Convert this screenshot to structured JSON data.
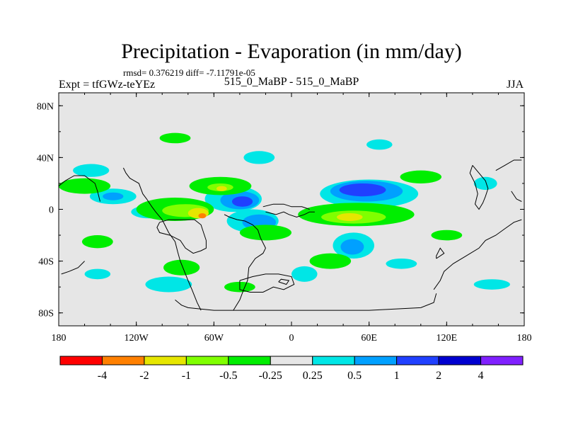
{
  "chart_data": {
    "type": "heatmap",
    "title": "Precipitation - Evaporation (in mm/day)",
    "stats_line": "rmsd= 0.376219 diff= -7.11791e-05",
    "experiment_label": "Expt = tfGWz-teYEz",
    "comparison_label": "515_0_MaBP - 515_0_MaBP",
    "season": "JJA",
    "x_ticks": [
      {
        "value": -180,
        "label": "180"
      },
      {
        "value": -120,
        "label": "120W"
      },
      {
        "value": -60,
        "label": "60W"
      },
      {
        "value": 0,
        "label": "0"
      },
      {
        "value": 60,
        "label": "60E"
      },
      {
        "value": 120,
        "label": "120E"
      },
      {
        "value": 180,
        "label": "180"
      }
    ],
    "y_ticks": [
      {
        "value": 80,
        "label": "80N"
      },
      {
        "value": 40,
        "label": "40N"
      },
      {
        "value": 0,
        "label": "0"
      },
      {
        "value": -40,
        "label": "40S"
      },
      {
        "value": -80,
        "label": "80S"
      }
    ],
    "xlim": [
      -180,
      180
    ],
    "ylim": [
      -90,
      90
    ],
    "colorbar": {
      "colors": [
        "#ff0000",
        "#ff8000",
        "#e6e600",
        "#80ff00",
        "#00ee00",
        "#e6e6e6",
        "#00e6e6",
        "#00a0ff",
        "#2040ff",
        "#0000d0",
        "#8020ff"
      ],
      "labels": [
        "-4",
        "-2",
        "-1",
        "-0.5",
        "-0.25",
        "0.25",
        "0.5",
        "1",
        "2",
        "4"
      ]
    },
    "regions": [
      {
        "level": 6,
        "lon": 60,
        "lat": 12,
        "rx": 38,
        "ry": 11
      },
      {
        "level": 7,
        "lon": 58,
        "lat": 14,
        "rx": 28,
        "ry": 8
      },
      {
        "level": 8,
        "lon": 55,
        "lat": 15,
        "rx": 18,
        "ry": 5
      },
      {
        "level": 6,
        "lon": -45,
        "lat": 8,
        "rx": 22,
        "ry": 10
      },
      {
        "level": 7,
        "lon": -40,
        "lat": 7,
        "rx": 15,
        "ry": 7
      },
      {
        "level": 8,
        "lon": -38,
        "lat": 6,
        "rx": 8,
        "ry": 4
      },
      {
        "level": 6,
        "lon": -30,
        "lat": -9,
        "rx": 20,
        "ry": 9
      },
      {
        "level": 7,
        "lon": -25,
        "lat": -10,
        "rx": 13,
        "ry": 6
      },
      {
        "level": 6,
        "lon": 48,
        "lat": -28,
        "rx": 16,
        "ry": 10
      },
      {
        "level": 7,
        "lon": 47,
        "lat": -29,
        "rx": 9,
        "ry": 6
      },
      {
        "level": 6,
        "lon": -138,
        "lat": 10,
        "rx": 18,
        "ry": 6
      },
      {
        "level": 7,
        "lon": -138,
        "lat": 10,
        "rx": 8,
        "ry": 3
      },
      {
        "level": 6,
        "lon": -110,
        "lat": -2,
        "rx": 14,
        "ry": 5
      },
      {
        "level": 6,
        "lon": -155,
        "lat": 30,
        "rx": 14,
        "ry": 5
      },
      {
        "level": 6,
        "lon": 150,
        "lat": 20,
        "rx": 9,
        "ry": 5
      },
      {
        "level": 6,
        "lon": -95,
        "lat": -58,
        "rx": 18,
        "ry": 6
      },
      {
        "level": 6,
        "lon": 10,
        "lat": -50,
        "rx": 10,
        "ry": 6
      },
      {
        "level": 6,
        "lon": 85,
        "lat": -42,
        "rx": 12,
        "ry": 4
      },
      {
        "level": 6,
        "lon": 155,
        "lat": -58,
        "rx": 14,
        "ry": 4
      },
      {
        "level": 6,
        "lon": -25,
        "lat": 40,
        "rx": 12,
        "ry": 5
      },
      {
        "level": 6,
        "lon": 68,
        "lat": 50,
        "rx": 10,
        "ry": 4
      },
      {
        "level": 6,
        "lon": -150,
        "lat": -50,
        "rx": 10,
        "ry": 4
      },
      {
        "level": 4,
        "lon": 50,
        "lat": -4,
        "rx": 45,
        "ry": 9
      },
      {
        "level": 3,
        "lon": 48,
        "lat": -6,
        "rx": 25,
        "ry": 5
      },
      {
        "level": 2,
        "lon": 45,
        "lat": -6,
        "rx": 10,
        "ry": 3
      },
      {
        "level": 4,
        "lon": -90,
        "lat": 0,
        "rx": 30,
        "ry": 9
      },
      {
        "level": 3,
        "lon": -82,
        "lat": -1,
        "rx": 18,
        "ry": 5
      },
      {
        "level": 2,
        "lon": -72,
        "lat": -3,
        "rx": 8,
        "ry": 4
      },
      {
        "level": 1,
        "lon": -69,
        "lat": -5,
        "rx": 3,
        "ry": 2
      },
      {
        "level": 4,
        "lon": -55,
        "lat": 18,
        "rx": 24,
        "ry": 7
      },
      {
        "level": 3,
        "lon": -55,
        "lat": 17,
        "rx": 10,
        "ry": 3
      },
      {
        "level": 2,
        "lon": -54,
        "lat": 16,
        "rx": 4,
        "ry": 2
      },
      {
        "level": 4,
        "lon": -160,
        "lat": 18,
        "rx": 20,
        "ry": 6
      },
      {
        "level": 4,
        "lon": 100,
        "lat": 25,
        "rx": 16,
        "ry": 5
      },
      {
        "level": 4,
        "lon": -20,
        "lat": -18,
        "rx": 20,
        "ry": 6
      },
      {
        "level": 4,
        "lon": 30,
        "lat": -40,
        "rx": 16,
        "ry": 6
      },
      {
        "level": 4,
        "lon": -85,
        "lat": -45,
        "rx": 14,
        "ry": 6
      },
      {
        "level": 4,
        "lon": -150,
        "lat": -25,
        "rx": 12,
        "ry": 5
      },
      {
        "level": 4,
        "lon": -90,
        "lat": 55,
        "rx": 12,
        "ry": 4
      },
      {
        "level": 4,
        "lon": 120,
        "lat": -20,
        "rx": 12,
        "ry": 4
      },
      {
        "level": 4,
        "lon": -40,
        "lat": -60,
        "rx": 12,
        "ry": 4
      }
    ],
    "coastlines": [
      "-130,32 -128,28 -125,24 -118,20 -115,12 -112,8 -108,2 -105,-2 -100,-8 -98,-12 -95,-18 -90,-25 -88,-33 -86,-40 -84,-45 -80,-55 -77,-62 -73,-72 -70,-78",
      "-45,-78 -40,-70 -37,-62 -34,-55 -33,-45 -28,-38 -22,-34 -20,-30 -22,-26 -24,-22 -26,-16 -30,-12 -36,-9 -42,-8 -48,-6 -52,-4",
      "-102,-10 -95,-8 -85,-8 -75,-8 -70,-12 -68,-18 -66,-24 -66,-30 -70,-32 -76,-34 -82,-30 -86,-24 -94,-20 -102,-18 -104,-14 -102,-10",
      "-20,-2 -12,-4 -6,-2 -2,-4 4,-6 10,-4 14,-2 18,-2",
      "-22,2 -14,4 -6,4 0,2 8,2 14,0",
      "-40,-55 -30,-52 -20,-50 -10,-50 0,-52 2,-58 -6,-62 -14,-60 -22,-64 -32,-64 -40,-62 -40,-55",
      "-10,-56 -4,-58 -2,-55 -8,-54 -10,-56",
      "-90,-70 -85,-74 -80,-76 -60,-78 -40,-78 -20,-78 0,-78 20,-78 40,-78 60,-78 80,-77 100,-76 110,-72 112,-65",
      "110,-62 115,-55 118,-48 125,-42 135,-36 145,-30 150,-24 158,-20 165,-15 172,-10 178,-8",
      "112,-38 118,-34 115,-30 112,-36 112,-38",
      "140,34 145,28 150,22 152,16 150,10 148,5 145,0 142,4 144,12 142,20 138,28 140,34",
      "158,30 165,34 172,38 178,38",
      "170,14 174,8 178,6",
      "-180,18 -175,22 -168,26 -160,26 -152,20 -150,14 -148,6",
      "-160,-40 -165,-45 -172,-48 -178,-50"
    ]
  }
}
